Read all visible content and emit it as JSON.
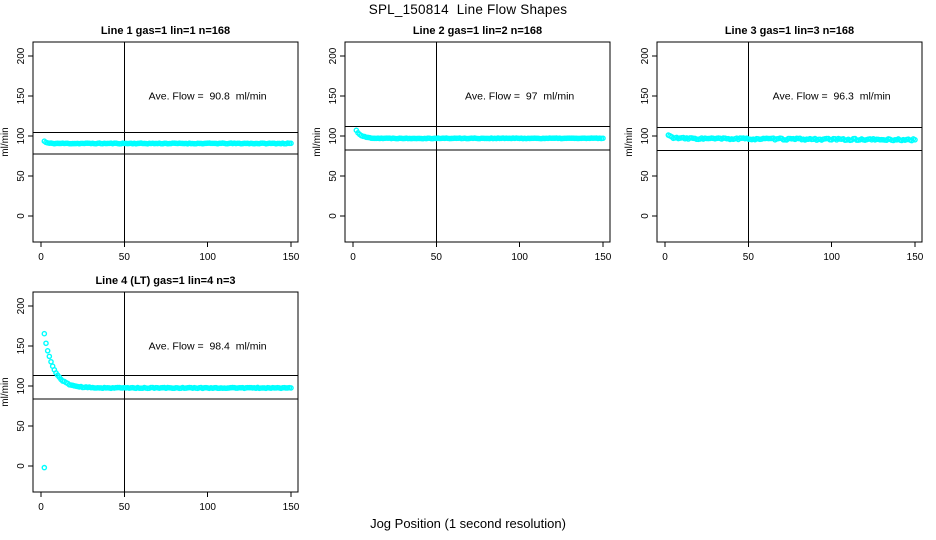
{
  "figure": {
    "title": "SPL_150814  Line Flow Shapes",
    "xlabel": "Jog Position (1 second resolution)",
    "background": "#FFFFFF",
    "point_color": "#00FFFF",
    "line_color": "#000000"
  },
  "chart_data": [
    {
      "type": "scatter",
      "title": "Line 1 gas=1 lin=1 n=168",
      "annotation": "Ave. Flow =  90.8  ml/min",
      "ave_flow": 90.8,
      "n": 168,
      "ylabel": "ml/min",
      "xticks": [
        0,
        50,
        100,
        150
      ],
      "yticks": [
        0,
        50,
        100,
        150,
        200
      ],
      "xlim": [
        -6,
        156
      ],
      "ylim": [
        -32,
        218
      ],
      "vline_x": 50,
      "hlines": [
        104.4,
        77.2
      ],
      "annotation_pos": {
        "x": 100,
        "y": 150
      },
      "points_profile": {
        "x_start": 2,
        "x_end": 150,
        "step": 1,
        "start": 93.5,
        "settle": 90.7,
        "tau": 1.3,
        "noise": 0.45,
        "slope": 0,
        "seed": 11
      },
      "outliers": []
    },
    {
      "type": "scatter",
      "title": "Line 2 gas=1 lin=2 n=168",
      "annotation": "Ave. Flow =  97  ml/min",
      "ave_flow": 97,
      "n": 168,
      "ylabel": "ml/min",
      "xticks": [
        0,
        50,
        100,
        150
      ],
      "yticks": [
        0,
        50,
        100,
        150,
        200
      ],
      "xlim": [
        -6,
        156
      ],
      "ylim": [
        -32,
        218
      ],
      "vline_x": 50,
      "hlines": [
        111.6,
        82.5
      ],
      "annotation_pos": {
        "x": 100,
        "y": 150
      },
      "points_profile": {
        "x_start": 2,
        "x_end": 150,
        "step": 1,
        "start": 107,
        "settle": 97.1,
        "tau": 3.0,
        "noise": 0.4,
        "slope": 0,
        "seed": 22
      },
      "outliers": []
    },
    {
      "type": "scatter",
      "title": "Line 3 gas=1 lin=3 n=168",
      "annotation": "Ave. Flow =  96.3  ml/min",
      "ave_flow": 96.3,
      "n": 168,
      "ylabel": "ml/min",
      "xticks": [
        0,
        50,
        100,
        150
      ],
      "yticks": [
        0,
        50,
        100,
        150,
        200
      ],
      "xlim": [
        -6,
        156
      ],
      "ylim": [
        -32,
        218
      ],
      "vline_x": 50,
      "hlines": [
        110.7,
        81.9
      ],
      "annotation_pos": {
        "x": 100,
        "y": 150
      },
      "points_profile": {
        "x_start": 2,
        "x_end": 150,
        "step": 1,
        "start": 101,
        "settle": 97.0,
        "tau": 2.5,
        "noise": 1.1,
        "slope": -0.012,
        "seed": 33
      },
      "outliers": []
    },
    {
      "type": "scatter",
      "title": "Line 4 (LT) gas=1 lin=4 n=3",
      "annotation": "Ave. Flow =  98.4  ml/min",
      "ave_flow": 98.4,
      "n": 3,
      "ylabel": "ml/min",
      "xticks": [
        0,
        50,
        100,
        150
      ],
      "yticks": [
        0,
        50,
        100,
        150,
        200
      ],
      "xlim": [
        -6,
        156
      ],
      "ylim": [
        -32,
        218
      ],
      "vline_x": 50,
      "hlines": [
        113.2,
        83.6
      ],
      "annotation_pos": {
        "x": 100,
        "y": 150
      },
      "points_profile": {
        "x_start": 2,
        "x_end": 150,
        "step": 1,
        "start": 165,
        "settle": 97.6,
        "tau": 5.5,
        "noise": 0.55,
        "slope": 0,
        "seed": 44
      },
      "outliers": [
        [
          2,
          -2
        ]
      ]
    }
  ]
}
